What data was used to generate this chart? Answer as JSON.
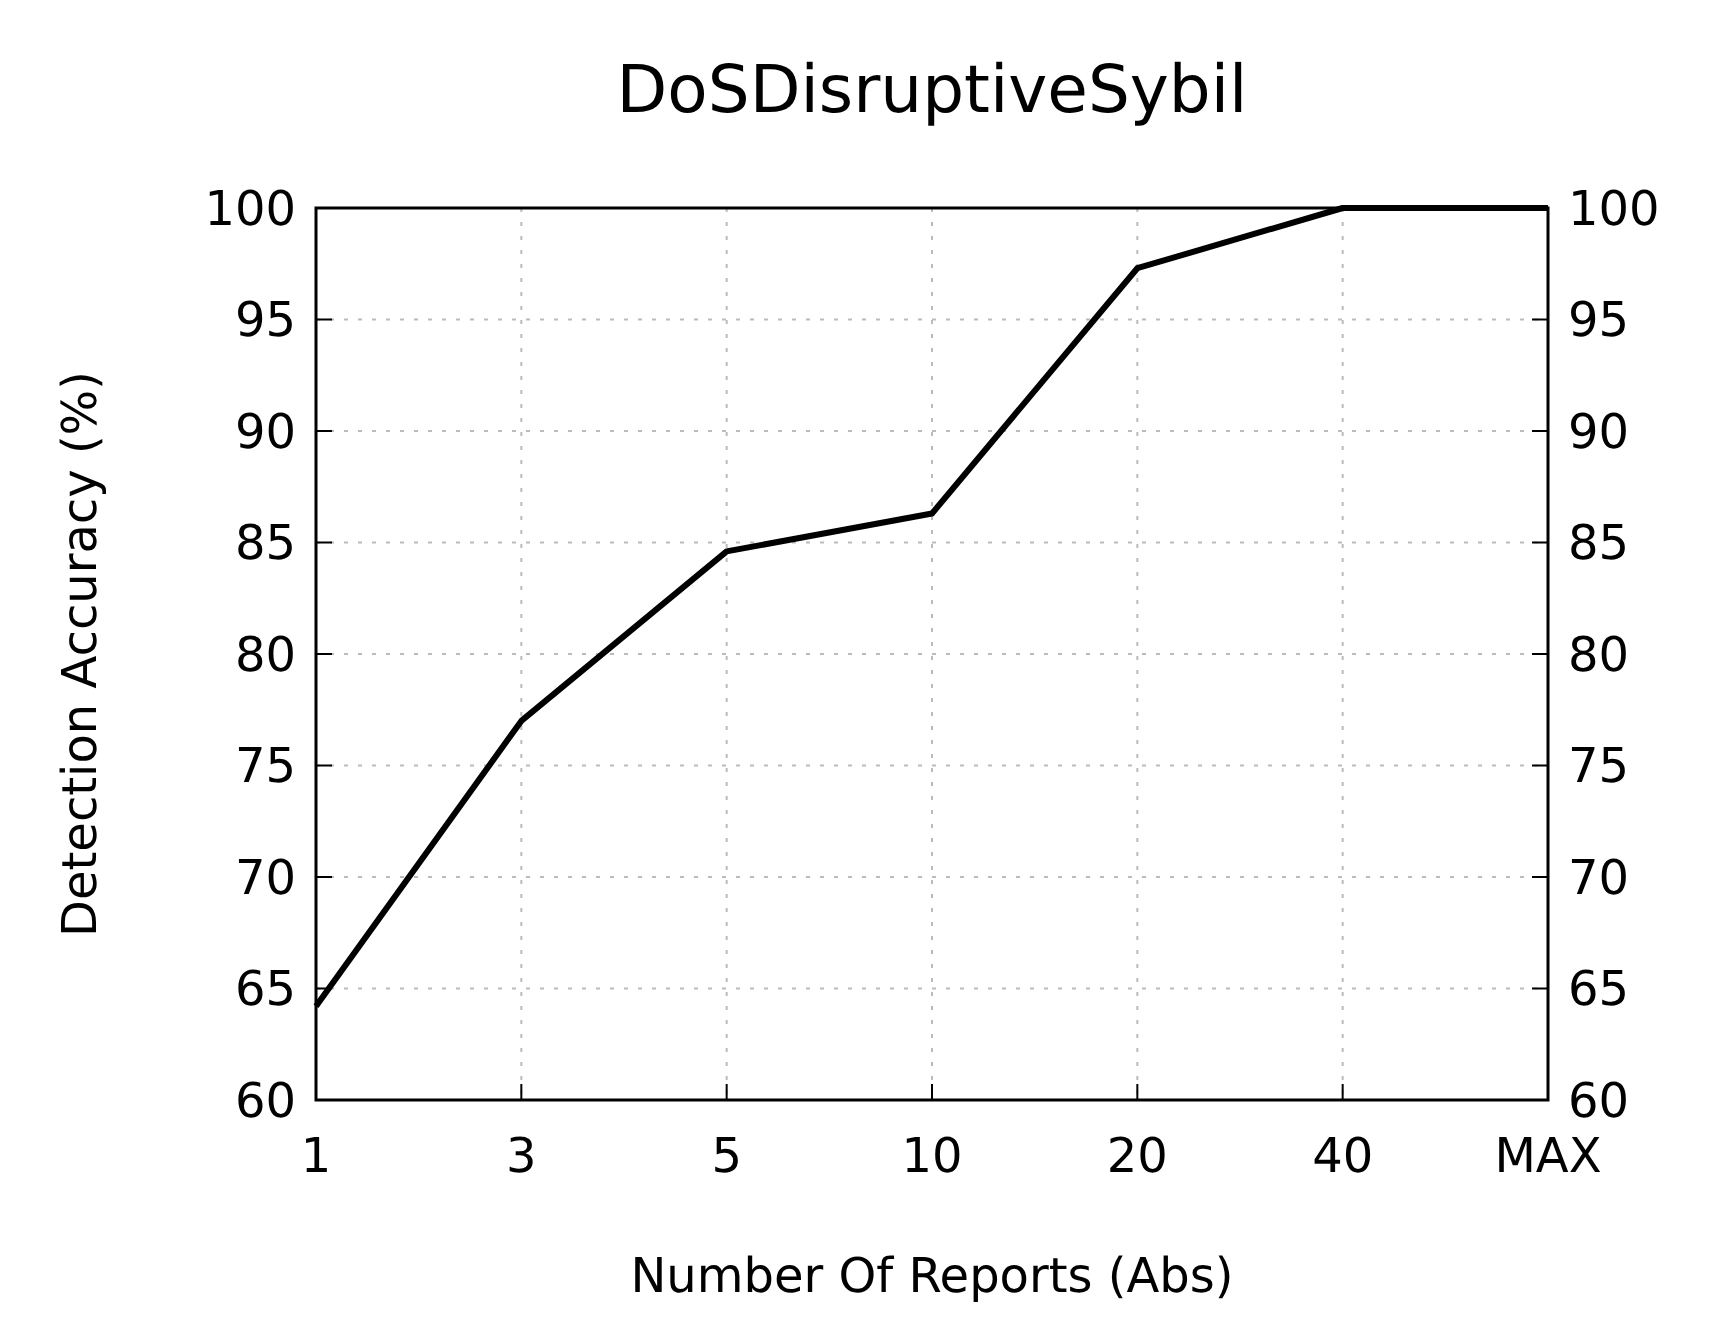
{
  "chart_data": {
    "type": "line",
    "title": "DoSDisruptiveSybil",
    "xlabel": "Number Of Reports (Abs)",
    "ylabel": "Detection Accuracy (%)",
    "categories": [
      "1",
      "3",
      "5",
      "10",
      "20",
      "40",
      "MAX"
    ],
    "series": [
      {
        "color": "#000000",
        "values": [
          64.2,
          77.0,
          84.6,
          86.3,
          97.3,
          100,
          100
        ]
      }
    ],
    "ylim": [
      60,
      100
    ],
    "yticks": [
      60,
      65,
      70,
      75,
      80,
      85,
      90,
      95,
      100
    ],
    "y2lim": [
      60,
      100
    ],
    "y2ticks": [
      60,
      65,
      70,
      75,
      80,
      85,
      90,
      95,
      100
    ],
    "grid": true,
    "marker": "none",
    "line_style": "solid"
  }
}
